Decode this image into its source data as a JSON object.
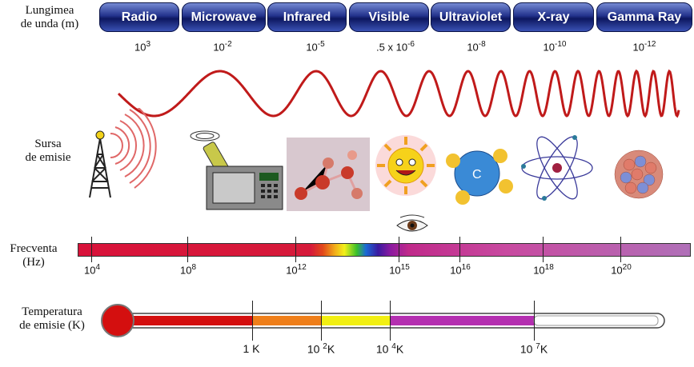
{
  "labels": {
    "wavelength": "Lungimea\nde unda (m)",
    "source": "Sursa\nde emisie",
    "frequency": "Frecventa\n(Hz)",
    "temperature": "Temperatura\nde emisie (K)"
  },
  "bands": [
    "Radio",
    "Microwave",
    "Infrared",
    "Visible",
    "Ultraviolet",
    "X-ray",
    "Gamma Ray"
  ],
  "wavelengths": [
    {
      "base": "10",
      "exp": "3"
    },
    {
      "base": "10",
      "exp": "-2"
    },
    {
      "base": "10",
      "exp": "-5"
    },
    {
      "base": ".5 x 10",
      "exp": "-6"
    },
    {
      "base": "10",
      "exp": "-8"
    },
    {
      "base": "10",
      "exp": "-10"
    },
    {
      "base": "10",
      "exp": "-12"
    }
  ],
  "sources": [
    "radio-tower",
    "microwave-oven",
    "molecules",
    "sun",
    "atom-with-eye",
    "atom",
    "atomic-nucleus"
  ],
  "frequency_ticks": [
    {
      "base": "10",
      "exp": "4"
    },
    {
      "base": "10",
      "exp": "8"
    },
    {
      "base": "10",
      "exp": "12"
    },
    {
      "base": "10",
      "exp": "15"
    },
    {
      "base": "10",
      "exp": "16"
    },
    {
      "base": "10",
      "exp": "18"
    },
    {
      "base": "10",
      "exp": "20"
    }
  ],
  "temperature_ticks": [
    {
      "text": "1 K",
      "base": "",
      "exp": "",
      "unit": ""
    },
    {
      "text": "",
      "base": "10 ",
      "exp": "2",
      "unit": "K"
    },
    {
      "text": "",
      "base": "10 ",
      "exp": "4",
      "unit": "K"
    },
    {
      "text": "",
      "base": "10 ",
      "exp": "7",
      "unit": "K"
    }
  ],
  "colors": {
    "band_dark": "#0d175f",
    "wave": "#c01a1a",
    "thermo_red": "#d40f0f",
    "thermo_orange": "#ef7f1a",
    "thermo_yellow": "#f2ef12",
    "thermo_magenta": "#b42fb0"
  }
}
